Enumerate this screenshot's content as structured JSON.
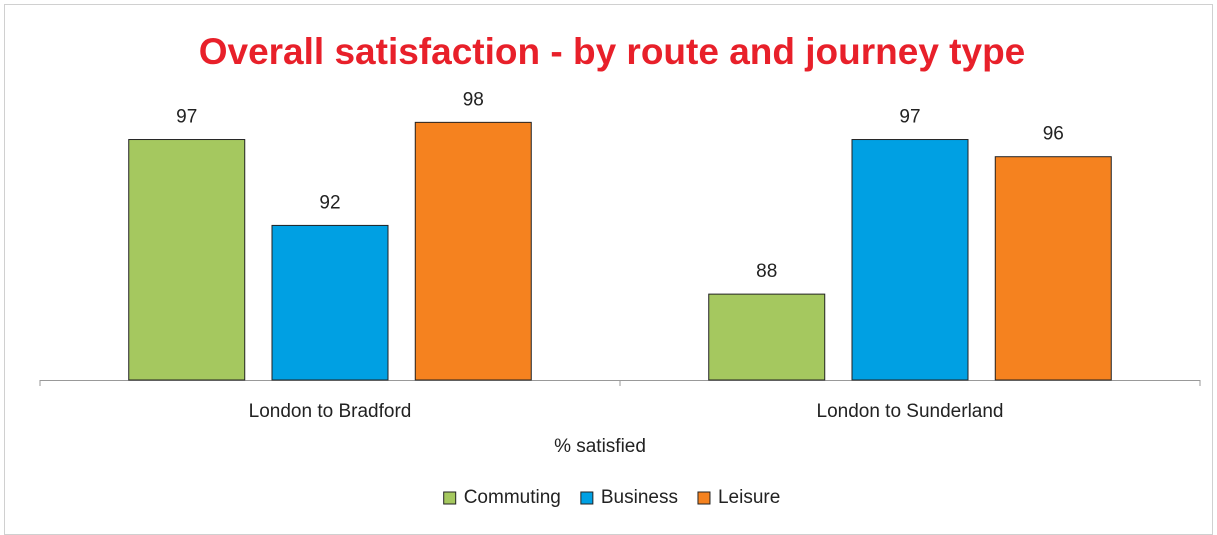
{
  "chart_data": {
    "type": "bar",
    "title": "Overall satisfaction - by route and journey type",
    "x_label": "% satisfied",
    "categories": [
      "London to Bradford",
      "London to Sunderland"
    ],
    "series": [
      {
        "name": "Commuting",
        "color": "#a5c85f",
        "values": [
          97,
          88
        ]
      },
      {
        "name": "Business",
        "color": "#00a0e3",
        "values": [
          92,
          97
        ]
      },
      {
        "name": "Leisure",
        "color": "#f5821f",
        "values": [
          98,
          96
        ]
      }
    ],
    "ylim": [
      83,
      100
    ],
    "legend": "bottom"
  }
}
